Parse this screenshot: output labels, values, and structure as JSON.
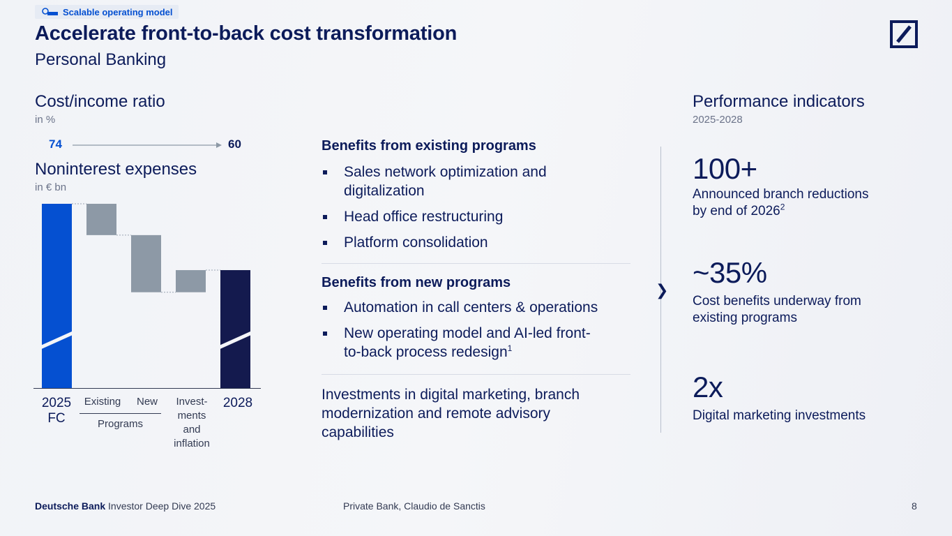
{
  "header": {
    "tag": "Scalable operating model",
    "title": "Accelerate front-to-back cost transformation",
    "subtitle": "Personal Banking"
  },
  "cost_income": {
    "title": "Cost/income ratio",
    "unit": "in %",
    "from": "74",
    "to": "60"
  },
  "expenses": {
    "title": "Noninterest expenses",
    "unit": "in € bn"
  },
  "chart_data": {
    "type": "waterfall",
    "categories": [
      "2025 FC",
      "Existing",
      "New",
      "Invest-ments and inflation",
      "2028"
    ],
    "values": [
      100,
      -17,
      -31,
      12,
      64
    ],
    "measure": [
      "total",
      "relative",
      "relative",
      "relative",
      "total"
    ],
    "group_label": "Programs",
    "group_members": [
      "Existing",
      "New"
    ],
    "axis_break": true,
    "colors": {
      "start": "#0550d1",
      "delta": "#8d99a6",
      "end": "#141a4e"
    },
    "labels": {
      "fc_year": "2025",
      "fc_suffix": "FC",
      "existing": "Existing",
      "new": "New",
      "inv_lines": [
        "Invest-",
        "ments",
        "and",
        "inflation"
      ],
      "end_year": "2028",
      "programs": "Programs"
    }
  },
  "middle": {
    "existing_heading": "Benefits from existing programs",
    "existing_items": [
      "Sales network optimization and digitalization",
      "Head office restructuring",
      "Platform consolidation"
    ],
    "new_heading": "Benefits from new programs",
    "new_items": [
      "Automation in call centers & operations",
      "New operating model and AI-led front-to-back process redesign"
    ],
    "new_item_2_line1": "New operating model and AI-led front-",
    "new_item_2_line2": "to-back process redesign",
    "new_item_2_sup": "1",
    "existing_item_1_line1": "Sales network optimization and",
    "existing_item_1_line2": "digitalization",
    "investments_text": "Investments in digital marketing, branch modernization and remote advisory capabilities"
  },
  "performance": {
    "title": "Performance indicators",
    "period": "2025-2028",
    "kpis": [
      {
        "value": "100+",
        "desc_line1": "Announced branch reductions",
        "desc_line2": "by end of 2026",
        "sup": "2"
      },
      {
        "value": "~35%",
        "desc_line1": "Cost benefits underway from",
        "desc_line2": "existing programs",
        "sup": ""
      },
      {
        "value": "2x",
        "desc_line1": "Digital marketing investments",
        "desc_line2": "",
        "sup": ""
      }
    ]
  },
  "footer": {
    "brand": "Deutsche Bank",
    "event": "Investor Deep Dive 2025",
    "presenter": "Private Bank, Claudio de Sanctis",
    "page": "8"
  },
  "colors": {
    "navy": "#0c1b5a",
    "accent": "#0550d1",
    "grey": "#8d99a6"
  }
}
